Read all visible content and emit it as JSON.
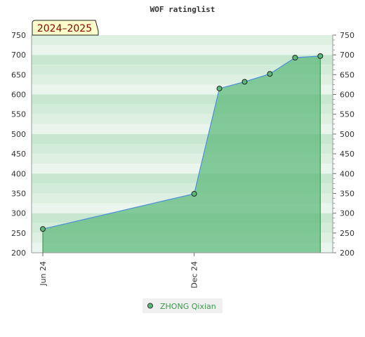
{
  "chart_data": {
    "type": "area",
    "title": "WOF ratinglist",
    "season_label": "2024–2025",
    "x_tick_labels": [
      "Jun 24",
      "Dec 24"
    ],
    "x_tick_values": [
      0,
      6
    ],
    "xlim": [
      0,
      11.2
    ],
    "ylim": [
      200,
      750
    ],
    "yticks": [
      200,
      250,
      300,
      350,
      400,
      450,
      500,
      550,
      600,
      650,
      700,
      750
    ],
    "series": [
      {
        "name": "ZHONG Qixian",
        "color": "#4a90d9",
        "fill": "#5cb87a",
        "x": [
          0,
          6,
          7,
          8,
          9,
          10,
          11
        ],
        "values": [
          260,
          349,
          615,
          632,
          652,
          693,
          697
        ]
      }
    ],
    "grid": true,
    "legend_position": "bottom"
  }
}
